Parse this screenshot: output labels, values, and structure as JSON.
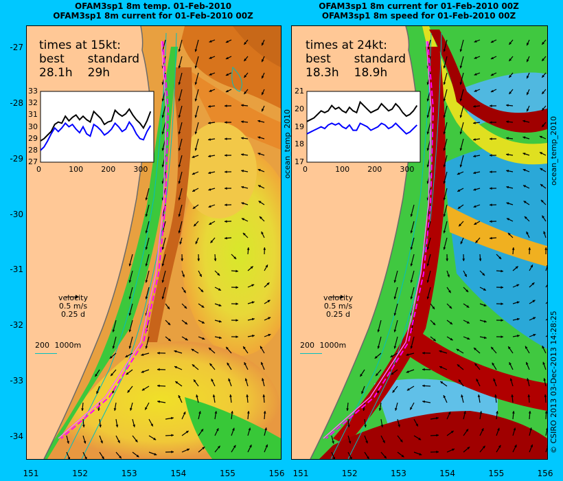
{
  "left_panel": {
    "title_line1": "OFAM3sp1 8m temp. 01-Feb-2010",
    "title_line2": "OFAM3sp1 8m current for 01-Feb-2010 00Z",
    "times_heading": "times at 15kt:",
    "best_label": "best",
    "standard_label": "standard",
    "best_value": "28.1h",
    "standard_value": "29h",
    "inset_y_ticks": [
      "33",
      "32",
      "31",
      "30",
      "29",
      "28",
      "27"
    ],
    "inset_x_ticks": [
      "0",
      "100",
      "200",
      "300"
    ],
    "inset_best_series": [
      28.8,
      29.0,
      29.3,
      29.6,
      30.2,
      30.4,
      30.3,
      30.9,
      30.5,
      30.8,
      31.0,
      30.6,
      30.9,
      30.6,
      30.4,
      31.3,
      31.0,
      30.7,
      30.2,
      30.4,
      30.5,
      31.4,
      31.1,
      30.9,
      31.1,
      31.5,
      31.0,
      30.6,
      30.3,
      29.9,
      30.5,
      31.3
    ],
    "inset_standard_series": [
      28.0,
      28.3,
      28.8,
      29.4,
      29.9,
      29.6,
      29.9,
      30.3,
      30.0,
      30.2,
      29.8,
      29.5,
      30.0,
      29.4,
      29.2,
      30.2,
      30.0,
      29.7,
      29.3,
      29.5,
      29.8,
      30.3,
      30.0,
      29.6,
      29.8,
      30.4,
      30.0,
      29.4,
      29.0,
      28.9,
      29.6,
      30.1
    ],
    "colorbar_label": "ocean_temp_2010"
  },
  "right_panel": {
    "title_line1": "OFAM3sp1 8m current for 01-Feb-2010 00Z",
    "title_line2": "OFAM3sp1 8m speed for 01-Feb-2010 00Z",
    "times_heading": "times at 24kt:",
    "best_label": "best",
    "standard_label": "standard",
    "best_value": "18.3h",
    "standard_value": "18.9h",
    "inset_y_ticks": [
      "21",
      "20",
      "19",
      "18",
      "17"
    ],
    "inset_x_ticks": [
      "0",
      "100",
      "200",
      "300"
    ],
    "inset_best_series": [
      19.3,
      19.4,
      19.5,
      19.7,
      19.9,
      19.8,
      19.9,
      20.2,
      20.0,
      20.1,
      19.9,
      19.8,
      20.1,
      19.9,
      19.8,
      20.4,
      20.2,
      20.0,
      19.8,
      19.9,
      20.0,
      20.3,
      20.1,
      19.9,
      20.0,
      20.3,
      20.1,
      19.8,
      19.6,
      19.7,
      19.9,
      20.2
    ],
    "inset_standard_series": [
      18.6,
      18.7,
      18.8,
      18.9,
      19.0,
      18.9,
      19.1,
      19.2,
      19.1,
      19.2,
      19.0,
      18.9,
      19.1,
      18.8,
      18.8,
      19.2,
      19.1,
      19.0,
      18.8,
      18.9,
      19.0,
      19.2,
      19.1,
      18.9,
      19.0,
      19.2,
      19.0,
      18.8,
      18.6,
      18.7,
      18.9,
      19.1
    ],
    "colorbar_label": "ocean_temp_2010"
  },
  "legend": {
    "velocity_label": "velocity",
    "velocity_speed": "0.5 m/s",
    "velocity_duration": "0.25 d",
    "depth_label_200": "200",
    "depth_label_1000": "1000m"
  },
  "axes": {
    "y_ticks": [
      "-27",
      "-28",
      "-29",
      "-30",
      "-31",
      "-32",
      "-33",
      "-34"
    ],
    "x_ticks": [
      "151",
      "152",
      "153",
      "154",
      "155",
      "156"
    ],
    "lon_range": [
      151,
      156
    ],
    "lat_range": [
      -34.4,
      -26.6
    ]
  },
  "credit": "© CSIRO 2013   03-Dec-2013 14:28:25",
  "colors": {
    "background": "#00c8ff",
    "land": "#ffc896",
    "route_best": "#ff00ff",
    "route_standard": "#ff66ff",
    "contour": "#00bfbf",
    "inset_best": "#000000",
    "inset_standard": "#0000ff"
  }
}
